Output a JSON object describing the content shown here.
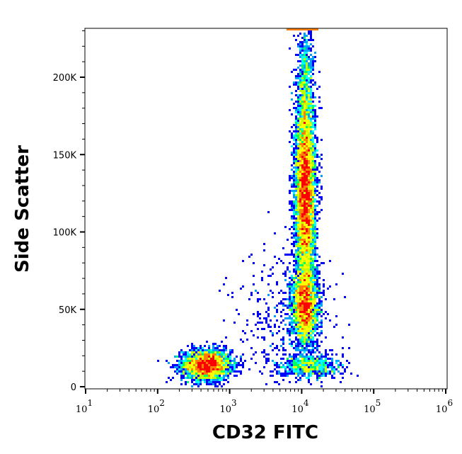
{
  "chart_data": {
    "type": "scatter",
    "subtype": "density-dot-plot",
    "xlabel": "CD32 FITC",
    "ylabel": "Side Scatter",
    "x_scale": "log",
    "xlim": [
      10,
      1070000
    ],
    "ylim": [
      0,
      232000
    ],
    "x_ticks": [
      {
        "base": "10",
        "exp": "1"
      },
      {
        "base": "10",
        "exp": "2"
      },
      {
        "base": "10",
        "exp": "3"
      },
      {
        "base": "10",
        "exp": "4"
      },
      {
        "base": "10",
        "exp": "5"
      },
      {
        "base": "10",
        "exp": "6"
      }
    ],
    "y_ticks": [
      "0",
      "50K",
      "100K",
      "150K",
      "200K"
    ],
    "y_tick_values": [
      0,
      50000,
      100000,
      150000,
      200000
    ],
    "grid": false,
    "colormap": [
      "#0000ff",
      "#00a0ff",
      "#00ffff",
      "#00ff60",
      "#c0ff00",
      "#ffff00",
      "#ff8000",
      "#ff0000"
    ],
    "populations": [
      {
        "x_center": 500,
        "y_center": 14000,
        "relative_density": "high"
      },
      {
        "x_center": 11000,
        "y_center": 125000,
        "relative_density": "high"
      },
      {
        "x_center": 11000,
        "y_center": 50000,
        "relative_density": "medium"
      },
      {
        "x_center": 12000,
        "y_center": 12000,
        "relative_density": "low"
      },
      {
        "x_center": 11000,
        "y_center": 232000,
        "relative_density": "saturated"
      }
    ]
  }
}
